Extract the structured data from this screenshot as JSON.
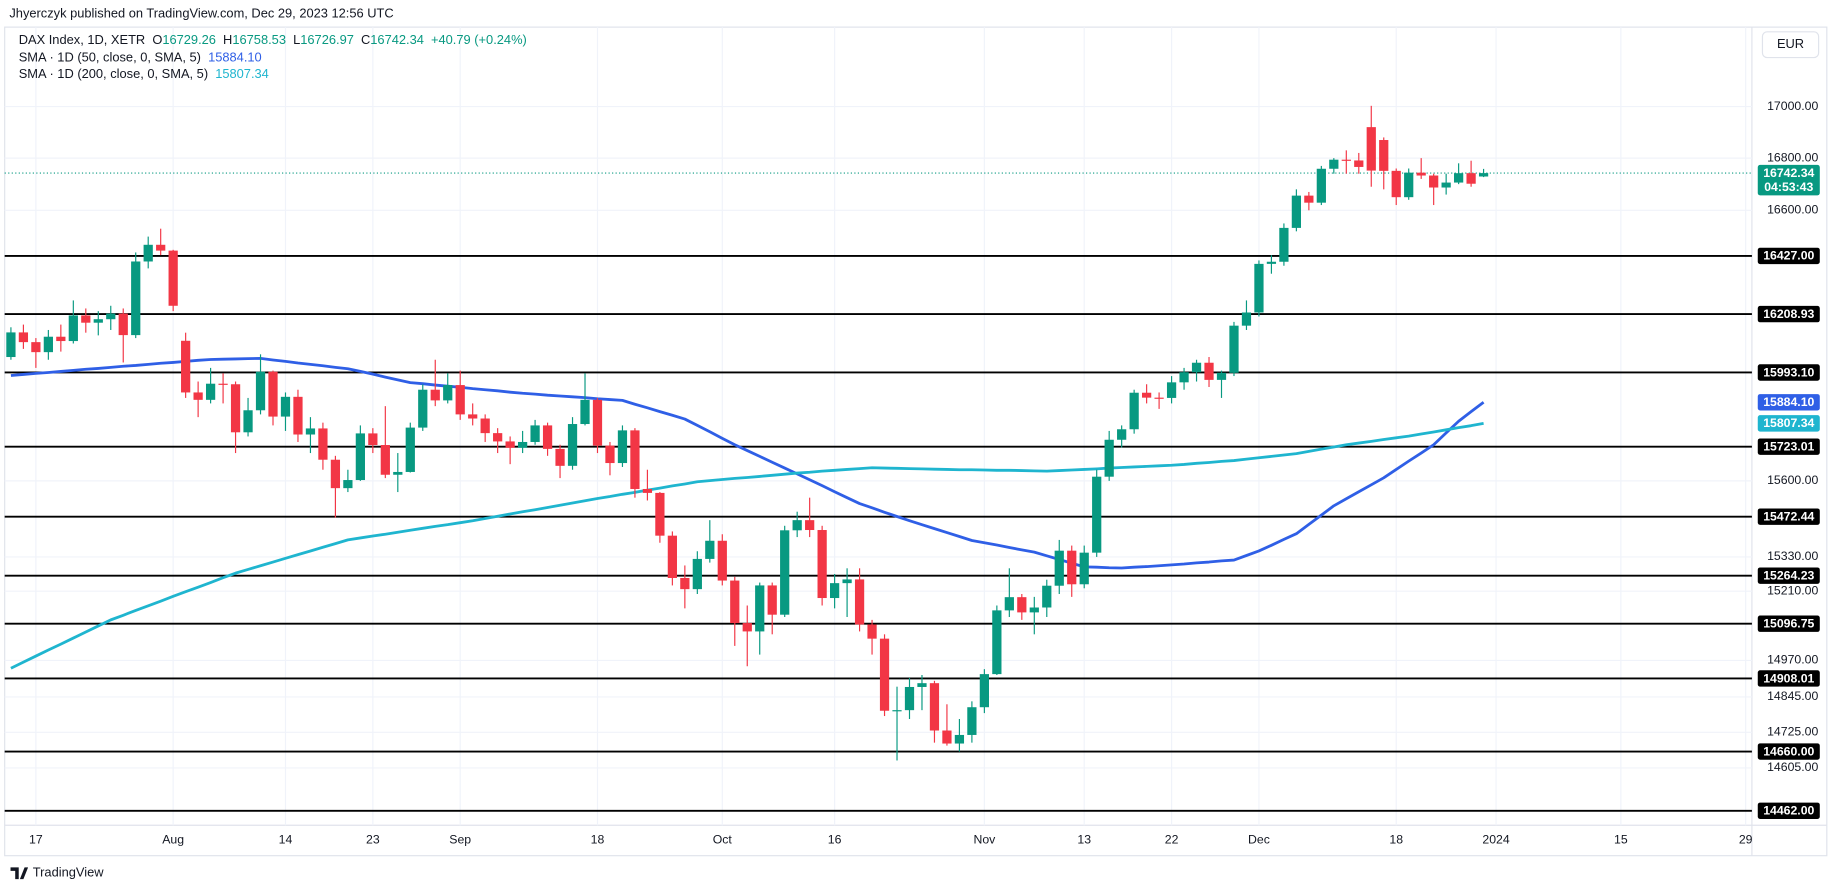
{
  "published": "Jhyerczyk published on TradingView.com, Dec 29, 2023 12:56 UTC",
  "currency": "EUR",
  "logo": "TradingView",
  "chart_data": {
    "type": "candlestick",
    "title": "DAX Index, 1D, XETR",
    "ohlc_labels": [
      "O",
      "H",
      "L",
      "C"
    ],
    "change": "+40.79 (+0.24%)",
    "countdown": "04:53:43",
    "log_scale": true,
    "grid": true,
    "up_color": "#089981",
    "down_color": "#f23645",
    "level_color": "#000000",
    "ylim": [
      14414,
      17313
    ],
    "yticks": [
      {
        "value": 17000,
        "label": "17000.00"
      },
      {
        "value": 16800,
        "label": "16800.00"
      },
      {
        "value": 16600,
        "label": "16600.00"
      },
      {
        "value": 15600,
        "label": "15600.00"
      },
      {
        "value": 15330,
        "label": "15330.00"
      },
      {
        "value": 15210,
        "label": "15210.00"
      },
      {
        "value": 14970,
        "label": "14970.00"
      },
      {
        "value": 14845,
        "label": "14845.00"
      },
      {
        "value": 14725,
        "label": "14725.00"
      },
      {
        "value": 14605,
        "label": "14605.00"
      }
    ],
    "levels": [
      {
        "value": 16427,
        "label": "16427.00"
      },
      16208.93,
      {
        "value": 15993.1,
        "label": "15993.10"
      },
      15723.01,
      15472.44,
      15264.23,
      15096.75,
      14908.01,
      {
        "value": 14660,
        "label": "14660.00"
      },
      {
        "value": 14462,
        "label": "14462.00"
      }
    ],
    "categories": [
      null,
      null,
      "17",
      null,
      null,
      null,
      null,
      null,
      null,
      null,
      null,
      null,
      null,
      "Aug",
      null,
      null,
      null,
      null,
      null,
      null,
      null,
      null,
      "14",
      null,
      null,
      null,
      null,
      null,
      null,
      "23",
      null,
      null,
      null,
      null,
      null,
      null,
      "Sep",
      null,
      null,
      null,
      null,
      null,
      null,
      null,
      null,
      null,
      null,
      "18",
      null,
      null,
      null,
      null,
      null,
      null,
      null,
      null,
      null,
      "Oct",
      null,
      null,
      null,
      null,
      null,
      null,
      null,
      null,
      "16",
      null,
      null,
      null,
      null,
      null,
      null,
      null,
      null,
      null,
      null,
      null,
      "Nov",
      null,
      null,
      null,
      null,
      null,
      null,
      null,
      "13",
      null,
      null,
      null,
      null,
      null,
      null,
      "22",
      null,
      null,
      null,
      null,
      null,
      null,
      "Dec",
      null,
      null,
      null,
      null,
      null,
      null,
      null,
      null,
      null,
      null,
      "18",
      null,
      null,
      null,
      null,
      null,
      null,
      null,
      "2024",
      null,
      null,
      null,
      null,
      null,
      null,
      null,
      null,
      null,
      "15",
      null,
      null,
      null,
      null,
      null,
      null,
      null,
      null,
      null,
      "29"
    ],
    "open": [
      16050,
      16141,
      16105,
      16068,
      16125,
      16109,
      16204,
      16177,
      16190,
      16211,
      16131,
      16406,
      16469,
      16447,
      16110,
      15920,
      15893,
      15952,
      15950,
      15775,
      15855,
      15996,
      15832,
      15904,
      15767,
      15789,
      15676,
      15574,
      15603,
      15771,
      15729,
      15622,
      15632,
      15792,
      15930,
      15891,
      15947,
      15840,
      15825,
      15772,
      15742,
      15719,
      15740,
      15800,
      15715,
      15654,
      15805,
      15893,
      15727,
      15664,
      15782,
      15571,
      15557,
      15405,
      15256,
      15217,
      15323,
      15387,
      15247,
      15099,
      15070,
      15230,
      15128,
      15424,
      15460,
      15425,
      15186,
      15238,
      15251,
      15094,
      15045,
      14798,
      14800,
      14879,
      14892,
      14731,
      14687,
      14716,
      14810,
      14923,
      15143,
      15189,
      15136,
      15153,
      15229,
      15352,
      15234,
      15345,
      15615,
      15748,
      15786,
      15919,
      15901,
      15900,
      15957,
      15994,
      16029,
      15966,
      15992,
      16166,
      16215,
      16397,
      16405,
      16533,
      16656,
      16629,
      16759,
      16794,
      16791,
      16920,
      16870,
      16751,
      16650,
      16744,
      16733,
      16687,
      16706,
      16742,
      16729.26,
      null,
      null,
      null,
      null,
      null,
      null,
      null,
      null,
      null,
      null,
      null,
      null,
      null,
      null,
      null,
      null,
      null,
      null,
      null,
      null,
      null
    ],
    "high": [
      16160,
      16170,
      16120,
      16150,
      16170,
      16260,
      16230,
      16220,
      16240,
      16230,
      16440,
      16500,
      16530,
      16450,
      16140,
      15960,
      16010,
      15990,
      15960,
      15900,
      16060,
      16000,
      15920,
      15930,
      15830,
      15810,
      15690,
      15640,
      15800,
      15790,
      15870,
      15700,
      15810,
      15950,
      16040,
      15990,
      16000,
      15880,
      15840,
      15790,
      15760,
      15780,
      15820,
      15810,
      15730,
      15830,
      15990,
      15900,
      15740,
      15800,
      15790,
      15640,
      15560,
      15420,
      15300,
      15350,
      15460,
      15410,
      15260,
      15160,
      15240,
      15240,
      15440,
      15490,
      15540,
      15440,
      15270,
      15290,
      15290,
      15110,
      15060,
      14880,
      14910,
      14920,
      14900,
      14820,
      14770,
      14830,
      14940,
      15160,
      15290,
      15200,
      15190,
      15250,
      15390,
      15370,
      15370,
      15640,
      15780,
      15800,
      15930,
      15950,
      15920,
      15980,
      16010,
      16040,
      16050,
      16000,
      16180,
      16260,
      16410,
      16430,
      16550,
      16680,
      16670,
      16770,
      16800,
      16830,
      16820,
      17003,
      16880,
      16760,
      16760,
      16800,
      16740,
      16740,
      16780,
      16790,
      16758.53,
      null,
      null,
      null,
      null,
      null,
      null,
      null,
      null,
      null,
      null,
      null,
      null,
      null,
      null,
      null,
      null,
      null,
      null,
      null,
      null,
      null
    ],
    "low": [
      16040,
      16080,
      16010,
      16040,
      16070,
      16100,
      16140,
      16130,
      16150,
      16030,
      16120,
      16380,
      16430,
      16220,
      15900,
      15830,
      15880,
      15880,
      15700,
      15760,
      15840,
      15800,
      15780,
      15740,
      15700,
      15640,
      15469,
      15560,
      15600,
      15700,
      15610,
      15560,
      15630,
      15780,
      15870,
      15880,
      15820,
      15800,
      15740,
      15700,
      15660,
      15700,
      15730,
      15690,
      15610,
      15640,
      15800,
      15700,
      15620,
      15650,
      15540,
      15530,
      15380,
      15230,
      15150,
      15200,
      15310,
      15230,
      15020,
      14950,
      14990,
      15060,
      15120,
      15400,
      15400,
      15160,
      15150,
      15120,
      15070,
      14990,
      14780,
      14630,
      14770,
      14800,
      14690,
      14680,
      14660,
      14690,
      14790,
      14920,
      15120,
      15110,
      15060,
      15120,
      15200,
      15190,
      15220,
      15330,
      15600,
      15720,
      15770,
      15880,
      15860,
      15880,
      15930,
      15960,
      15940,
      15900,
      15980,
      16150,
      16200,
      16360,
      16390,
      16520,
      16600,
      16620,
      16740,
      16740,
      16740,
      16690,
      16680,
      16620,
      16640,
      16720,
      16620,
      16660,
      16700,
      16690,
      16726.97,
      null,
      null,
      null,
      null,
      null,
      null,
      null,
      null,
      null,
      null,
      null,
      null,
      null,
      null,
      null,
      null,
      null,
      null,
      null,
      null,
      null
    ],
    "close": [
      16141,
      16105,
      16068,
      16125,
      16109,
      16204,
      16177,
      16190,
      16211,
      16131,
      16406,
      16469,
      16447,
      16240,
      15920,
      15893,
      15952,
      15950,
      15775,
      15855,
      15996,
      15832,
      15904,
      15767,
      15789,
      15676,
      15574,
      15603,
      15771,
      15729,
      15622,
      15632,
      15792,
      15930,
      15891,
      15947,
      15840,
      15825,
      15772,
      15742,
      15719,
      15740,
      15800,
      15715,
      15654,
      15805,
      15893,
      15727,
      15664,
      15782,
      15571,
      15557,
      15405,
      15256,
      15217,
      15323,
      15387,
      15247,
      15099,
      15070,
      15230,
      15128,
      15424,
      15460,
      15425,
      15186,
      15238,
      15251,
      15094,
      15045,
      14798,
      14800,
      14879,
      14892,
      14731,
      14687,
      14716,
      14810,
      14923,
      15143,
      15189,
      15136,
      15153,
      15229,
      15352,
      15234,
      15345,
      15615,
      15748,
      15786,
      15919,
      15901,
      15900,
      15957,
      15994,
      16029,
      15966,
      15992,
      16166,
      16215,
      16397,
      16405,
      16533,
      16656,
      16629,
      16759,
      16794,
      16791,
      16766,
      16752,
      16751,
      16650,
      16744,
      16733,
      16687,
      16706,
      16742,
      16701.55,
      16742.34,
      null,
      null,
      null,
      null,
      null,
      null,
      null,
      null,
      null,
      null,
      null,
      null,
      null,
      null,
      null,
      null,
      null,
      null,
      null,
      null,
      null
    ],
    "series": [
      {
        "name": "SMA · 1D (50, close, 0, SMA, 5)",
        "color": "#2f5fe6",
        "last_label": "15884.10",
        "values": [
          15982,
          15986,
          15990,
          15993,
          15997,
          16001,
          16005,
          16008,
          16012,
          16016,
          16019,
          16023,
          16027,
          16030,
          16034,
          16038,
          16041,
          16042,
          16043,
          16044,
          16045,
          16039,
          16034,
          16028,
          16023,
          16018,
          16012,
          16007,
          15997,
          15987,
          15976,
          15966,
          15956,
          15952,
          15947,
          15943,
          15939,
          15934,
          15930,
          15926,
          15921,
          15917,
          15914,
          15910,
          15907,
          15904,
          15901,
          15897,
          15894,
          15891,
          15877,
          15864,
          15850,
          15837,
          15823,
          15800,
          15777,
          15753,
          15730,
          15709,
          15688,
          15667,
          15646,
          15625,
          15604,
          15583,
          15561,
          15540,
          15519,
          15504,
          15488,
          15473,
          15458,
          15444,
          15430,
          15416,
          15402,
          15388,
          15380,
          15372,
          15363,
          15355,
          15347,
          15334,
          15321,
          15308,
          15295,
          15294,
          15292,
          15291,
          15294,
          15296,
          15299,
          15302,
          15305,
          15309,
          15312,
          15316,
          15319,
          15335,
          15351,
          15371,
          15392,
          15412,
          15445,
          15478,
          15511,
          15536,
          15561,
          15586,
          15611,
          15641,
          15671,
          15700,
          15730,
          15773,
          15815,
          15850,
          15884.1,
          null,
          null,
          null,
          null,
          null,
          null,
          null,
          null,
          null,
          null,
          null,
          null,
          null,
          null,
          null,
          null,
          null,
          null,
          null,
          null,
          null
        ]
      },
      {
        "name": "SMA · 1D (200, close, 0, SMA, 5)",
        "color": "#1fb5cf",
        "last_label": "15807.34",
        "values": [
          14943,
          14964,
          14985,
          15006,
          15026,
          15047,
          15068,
          15089,
          15110,
          15126,
          15143,
          15159,
          15175,
          15192,
          15208,
          15224,
          15240,
          15257,
          15273,
          15286,
          15299,
          15312,
          15325,
          15338,
          15351,
          15364,
          15377,
          15390,
          15397,
          15404,
          15410,
          15417,
          15424,
          15431,
          15438,
          15444,
          15451,
          15458,
          15466,
          15474,
          15482,
          15490,
          15497,
          15505,
          15513,
          15521,
          15529,
          15537,
          15544,
          15552,
          15559,
          15567,
          15574,
          15582,
          15589,
          15597,
          15601,
          15605,
          15609,
          15612,
          15616,
          15620,
          15624,
          15628,
          15631,
          15635,
          15638,
          15641,
          15644,
          15647,
          15646,
          15645,
          15644,
          15643,
          15642,
          15641,
          15640,
          15640,
          15639,
          15638,
          15638,
          15637,
          15636,
          15635,
          15637,
          15639,
          15641,
          15643,
          15646,
          15648,
          15650,
          15652,
          15654,
          15656,
          15659,
          15663,
          15666,
          15670,
          15673,
          15678,
          15683,
          15688,
          15693,
          15698,
          15706,
          15714,
          15722,
          15730,
          15736,
          15742,
          15749,
          15755,
          15761,
          15769,
          15776,
          15784,
          15792,
          15799,
          15807.34,
          null,
          null,
          null,
          null,
          null,
          null,
          null,
          null,
          null,
          null,
          null,
          null,
          null,
          null,
          null,
          null,
          null,
          null,
          null,
          null,
          null
        ]
      }
    ]
  }
}
